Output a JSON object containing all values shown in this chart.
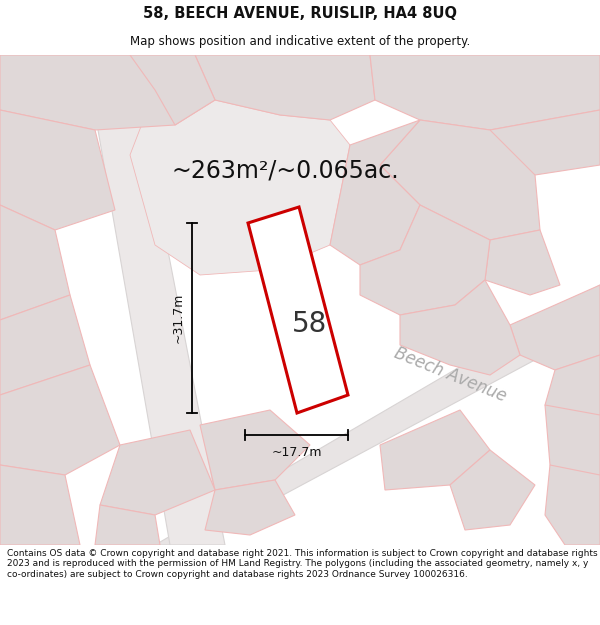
{
  "title": "58, BEECH AVENUE, RUISLIP, HA4 8UQ",
  "subtitle": "Map shows position and indicative extent of the property.",
  "area_text": "~263m²/~0.065ac.",
  "number_label": "58",
  "dim_width": "~17.7m",
  "dim_height": "~31.7m",
  "street_label": "Beech Avenue",
  "footer": "Contains OS data © Crown copyright and database right 2021. This information is subject to Crown copyright and database rights 2023 and is reproduced with the permission of HM Land Registry. The polygons (including the associated geometry, namely x, y co-ordinates) are subject to Crown copyright and database rights 2023 Ordnance Survey 100026316.",
  "bg_color": "#f7f4f4",
  "map_bg": "#f0ecec",
  "plot_fill": "#ffffff",
  "plot_stroke": "#cc0000",
  "pink_line": "#f0b8b8",
  "gray_fill": "#e0d8d8",
  "road_fill": "#e8e4e4",
  "title_fontsize": 10.5,
  "subtitle_fontsize": 8.5,
  "area_fontsize": 17,
  "number_fontsize": 20,
  "dim_fontsize": 9,
  "street_fontsize": 12,
  "footer_fontsize": 6.5
}
